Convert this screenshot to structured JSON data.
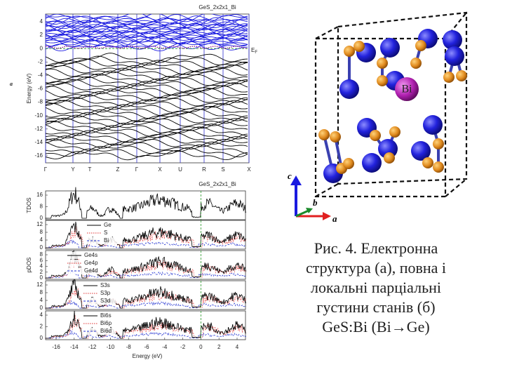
{
  "band_panel": {
    "label": "a",
    "title": "GeS_2x2x1_Bi",
    "y_label": "Energy (eV)",
    "yticks": [
      "4",
      "2",
      "0",
      "-2",
      "-4",
      "-6",
      "-8",
      "-10",
      "-12",
      "-14",
      "-16"
    ],
    "kpoints": [
      "Γ",
      "Y",
      "T",
      "Z",
      "Γ",
      "X",
      "U",
      "R",
      "S",
      "X"
    ],
    "fermi_label": {
      "main": "E",
      "sub": "F"
    }
  },
  "dos_panel": {
    "title": "GeS_2x2x1_Bi",
    "x_label": "Energy (eV)",
    "xticks": [
      "-16",
      "-14",
      "-12",
      "-10",
      "-8",
      "-6",
      "-4",
      "-2",
      "0",
      "2",
      "4"
    ],
    "panels": [
      {
        "y_label": "TDOS",
        "yticks": [
          "16",
          "8",
          "0"
        ],
        "legend": []
      },
      {
        "y_label": "",
        "yticks": [
          "12",
          "8",
          "4",
          "0"
        ],
        "legend": [
          "Ge",
          "S",
          "Bi"
        ]
      },
      {
        "y_label": "pDOS",
        "yticks": [
          "8",
          "6",
          "4",
          "2",
          "0"
        ],
        "legend": [
          "Ge4s",
          "Ge4p",
          "Ge4d"
        ]
      },
      {
        "y_label": "",
        "yticks": [
          "12",
          "8",
          "4",
          "0"
        ],
        "legend": [
          "S3s",
          "S3p",
          "S3d"
        ]
      },
      {
        "y_label": "",
        "yticks": [
          "4",
          "2",
          "0"
        ],
        "legend": [
          "Bi6s",
          "Bi6p",
          "Bi6d"
        ]
      }
    ]
  },
  "structure": {
    "atom_label": "Bi",
    "axes": [
      "c",
      "b",
      "a"
    ]
  },
  "caption": {
    "lines": [
      "Рис. 4. Електронна",
      "структура (а), повна і",
      "локальні парціальні",
      "густини станів (б)",
      "GeS:Bi (Bi→Ge)"
    ]
  }
}
